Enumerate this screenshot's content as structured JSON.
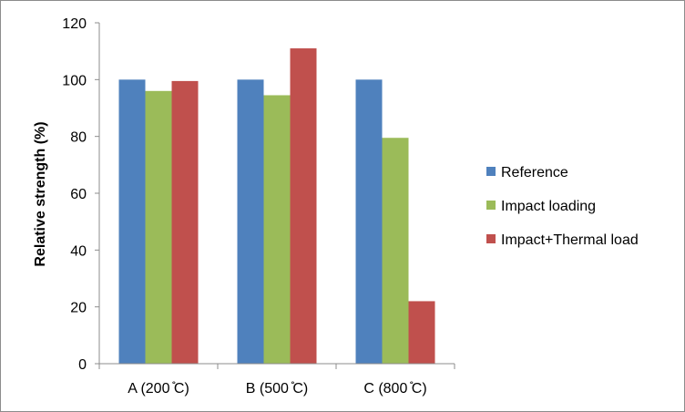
{
  "chart_data": {
    "type": "bar",
    "title": "",
    "xlabel": "",
    "ylabel": "Relative strength (%)",
    "ylim": [
      0,
      120
    ],
    "yticks": [
      0,
      20,
      40,
      60,
      80,
      100,
      120
    ],
    "grid": false,
    "legend_position": "right",
    "categories": [
      "A (200 ̊C)",
      "B (500 ̊C)",
      "C (800 ̊C)"
    ],
    "series": [
      {
        "name": "Reference",
        "color": "#4f81bd",
        "values": [
          100,
          100,
          100
        ]
      },
      {
        "name": "Impact loading",
        "color": "#9bbb59",
        "values": [
          96,
          94.5,
          79.5
        ]
      },
      {
        "name": "Impact+Thermal load",
        "color": "#c0504d",
        "values": [
          99.5,
          111,
          22
        ]
      }
    ]
  }
}
